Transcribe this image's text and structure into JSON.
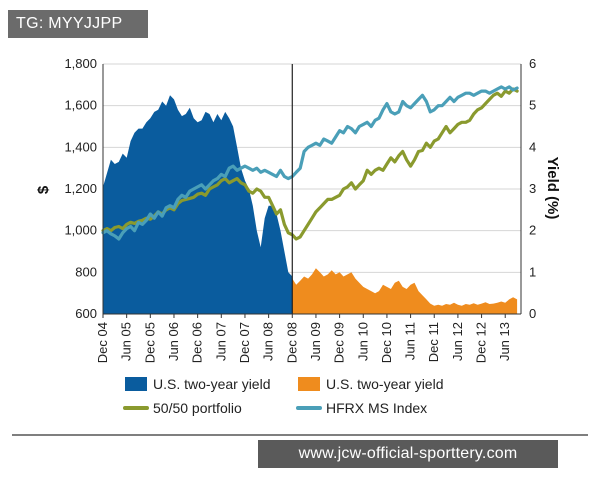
{
  "header": {
    "tag": "TG: MYYJJPP"
  },
  "watermark": {
    "text": "www.jcw-official-sporttery.com"
  },
  "chart_data": {
    "type": "area+line",
    "title": "",
    "left_axis": {
      "label": "$",
      "range": [
        600,
        1800
      ],
      "ticks": [
        "600",
        "800",
        "1,000",
        "1,200",
        "1,400",
        "1,600",
        "1,800"
      ],
      "tick_values": [
        600,
        800,
        1000,
        1200,
        1400,
        1600,
        1800
      ]
    },
    "right_axis": {
      "label": "Yield (%)",
      "range": [
        0,
        6
      ],
      "ticks": [
        "0",
        "1",
        "2",
        "3",
        "4",
        "5",
        "6"
      ],
      "tick_values": [
        0,
        1,
        2,
        3,
        4,
        5,
        6
      ]
    },
    "x_axis": {
      "label": "",
      "range": [
        0,
        106
      ],
      "tick_labels": [
        "Dec 04",
        "Jun 05",
        "Dec 05",
        "Jun 06",
        "Dec 06",
        "Jun 07",
        "Dec 07",
        "Jun 08",
        "Dec 08",
        "Jun 09",
        "Dec 09",
        "Jun 10",
        "Dec 10",
        "Jun 11",
        "Dec 11",
        "Jun 12",
        "Dec 12",
        "Jun 13"
      ],
      "tick_positions": [
        0,
        6,
        12,
        18,
        24,
        30,
        36,
        42,
        48,
        54,
        60,
        66,
        72,
        78,
        84,
        90,
        96,
        102
      ]
    },
    "divider_month": 48,
    "x_unit": "months since Dec 2004",
    "series": [
      {
        "name": "U.S. two-year yield",
        "axis": "right",
        "style": "area",
        "color": "#0a5c9e",
        "x": [
          0,
          2,
          3,
          4,
          5,
          6,
          7,
          8,
          9,
          10,
          11,
          12,
          13,
          14,
          15,
          16,
          17,
          18,
          19,
          20,
          21,
          22,
          23,
          24,
          25,
          26,
          27,
          28,
          29,
          30,
          31,
          32,
          33,
          34,
          35,
          36,
          37,
          38,
          39,
          40,
          41,
          42,
          43,
          44,
          45,
          46,
          47,
          48
        ],
        "values": [
          3.05,
          3.7,
          3.6,
          3.65,
          3.85,
          3.75,
          4.15,
          4.35,
          4.45,
          4.45,
          4.6,
          4.7,
          4.85,
          4.9,
          5.1,
          5.0,
          5.25,
          5.15,
          4.9,
          4.75,
          4.8,
          4.95,
          4.7,
          4.6,
          4.65,
          4.85,
          4.8,
          4.6,
          4.8,
          4.65,
          4.85,
          4.7,
          4.5,
          4.0,
          3.5,
          3.2,
          3.0,
          2.6,
          2.0,
          1.6,
          2.3,
          2.6,
          2.6,
          2.4,
          2.0,
          1.5,
          1.0,
          0.9
        ]
      },
      {
        "name": "U.S. two-year yield",
        "axis": "right",
        "style": "area",
        "color": "#ef8c1e",
        "x": [
          48,
          49,
          50,
          51,
          52,
          53,
          54,
          55,
          56,
          57,
          58,
          59,
          60,
          61,
          62,
          63,
          64,
          65,
          66,
          67,
          68,
          69,
          70,
          71,
          72,
          73,
          74,
          75,
          76,
          77,
          78,
          79,
          80,
          81,
          82,
          83,
          84,
          85,
          86,
          87,
          88,
          89,
          90,
          91,
          92,
          93,
          94,
          95,
          96,
          97,
          98,
          99,
          100,
          101,
          102,
          103,
          104,
          105
        ],
        "values": [
          0.85,
          0.7,
          0.8,
          0.9,
          0.85,
          0.95,
          1.1,
          1.0,
          0.9,
          0.95,
          1.05,
          0.95,
          1.0,
          0.9,
          0.95,
          1.0,
          0.85,
          0.75,
          0.65,
          0.6,
          0.55,
          0.5,
          0.55,
          0.7,
          0.65,
          0.6,
          0.75,
          0.8,
          0.65,
          0.6,
          0.7,
          0.75,
          0.55,
          0.45,
          0.35,
          0.25,
          0.2,
          0.22,
          0.2,
          0.24,
          0.22,
          0.27,
          0.22,
          0.2,
          0.24,
          0.22,
          0.26,
          0.22,
          0.25,
          0.28,
          0.24,
          0.25,
          0.27,
          0.3,
          0.27,
          0.35,
          0.4,
          0.35
        ]
      },
      {
        "name": "50/50 portfolio",
        "axis": "left",
        "style": "line",
        "color": "#8a9a2e",
        "x": [
          0,
          1,
          2,
          3,
          4,
          5,
          6,
          7,
          8,
          9,
          10,
          11,
          12,
          13,
          14,
          15,
          16,
          17,
          18,
          19,
          20,
          21,
          22,
          23,
          24,
          25,
          26,
          27,
          28,
          29,
          30,
          31,
          32,
          33,
          34,
          35,
          36,
          37,
          38,
          39,
          40,
          41,
          42,
          43,
          44,
          45,
          46,
          47,
          48,
          49,
          50,
          51,
          52,
          53,
          54,
          55,
          56,
          57,
          58,
          59,
          60,
          61,
          62,
          63,
          64,
          65,
          66,
          67,
          68,
          69,
          70,
          71,
          72,
          73,
          74,
          75,
          76,
          77,
          78,
          79,
          80,
          81,
          82,
          83,
          84,
          85,
          86,
          87,
          88,
          89,
          90,
          91,
          92,
          93,
          94,
          95,
          96,
          97,
          98,
          99,
          100,
          101,
          102,
          103,
          104,
          105
        ],
        "values": [
          1000,
          1010,
          1000,
          1015,
          1020,
          1010,
          1030,
          1040,
          1035,
          1045,
          1050,
          1060,
          1055,
          1070,
          1090,
          1080,
          1100,
          1110,
          1100,
          1130,
          1145,
          1150,
          1155,
          1160,
          1175,
          1180,
          1170,
          1200,
          1210,
          1220,
          1240,
          1250,
          1230,
          1240,
          1250,
          1230,
          1220,
          1190,
          1180,
          1200,
          1190,
          1160,
          1160,
          1120,
          1080,
          1100,
          1030,
          990,
          980,
          960,
          970,
          1000,
          1030,
          1060,
          1090,
          1110,
          1130,
          1150,
          1150,
          1160,
          1170,
          1200,
          1210,
          1230,
          1200,
          1220,
          1240,
          1290,
          1270,
          1290,
          1300,
          1290,
          1320,
          1350,
          1330,
          1360,
          1380,
          1340,
          1310,
          1340,
          1380,
          1385,
          1420,
          1400,
          1430,
          1440,
          1470,
          1500,
          1470,
          1490,
          1510,
          1520,
          1520,
          1530,
          1560,
          1580,
          1590,
          1610,
          1630,
          1650,
          1660,
          1645,
          1670,
          1660,
          1680,
          1670
        ]
      },
      {
        "name": "HFRX MS Index",
        "axis": "left",
        "style": "line",
        "color": "#4a9fb8",
        "x": [
          0,
          1,
          2,
          3,
          4,
          5,
          6,
          7,
          8,
          9,
          10,
          11,
          12,
          13,
          14,
          15,
          16,
          17,
          18,
          19,
          20,
          21,
          22,
          23,
          24,
          25,
          26,
          27,
          28,
          29,
          30,
          31,
          32,
          33,
          34,
          35,
          36,
          37,
          38,
          39,
          40,
          41,
          42,
          43,
          44,
          45,
          46,
          47,
          48,
          49,
          50,
          51,
          52,
          53,
          54,
          55,
          56,
          57,
          58,
          59,
          60,
          61,
          62,
          63,
          64,
          65,
          66,
          67,
          68,
          69,
          70,
          71,
          72,
          73,
          74,
          75,
          76,
          77,
          78,
          79,
          80,
          81,
          82,
          83,
          84,
          85,
          86,
          87,
          88,
          89,
          90,
          91,
          92,
          93,
          94,
          95,
          96,
          97,
          98,
          99,
          100,
          101,
          102,
          103,
          104,
          105
        ],
        "values": [
          990,
          1000,
          985,
          975,
          960,
          990,
          1010,
          1020,
          1000,
          1040,
          1030,
          1050,
          1080,
          1060,
          1090,
          1070,
          1110,
          1120,
          1110,
          1150,
          1170,
          1160,
          1190,
          1200,
          1210,
          1220,
          1200,
          1220,
          1240,
          1250,
          1270,
          1260,
          1300,
          1310,
          1290,
          1300,
          1310,
          1300,
          1290,
          1300,
          1280,
          1290,
          1280,
          1270,
          1260,
          1290,
          1260,
          1250,
          1260,
          1280,
          1300,
          1380,
          1400,
          1410,
          1420,
          1410,
          1440,
          1430,
          1420,
          1450,
          1480,
          1470,
          1500,
          1490,
          1470,
          1500,
          1510,
          1520,
          1500,
          1530,
          1540,
          1580,
          1610,
          1570,
          1560,
          1570,
          1620,
          1600,
          1590,
          1610,
          1630,
          1650,
          1620,
          1570,
          1580,
          1600,
          1600,
          1620,
          1640,
          1620,
          1640,
          1650,
          1660,
          1660,
          1650,
          1660,
          1670,
          1670,
          1660,
          1670,
          1680,
          1690,
          1680,
          1690,
          1675,
          1685
        ]
      }
    ],
    "legend": [
      {
        "label": "U.S. two-year yield",
        "color": "#0a5c9e",
        "kind": "swatch"
      },
      {
        "label": "U.S. two-year yield",
        "color": "#ef8c1e",
        "kind": "swatch"
      },
      {
        "label": "50/50 portfolio",
        "color": "#8a9a2e",
        "kind": "line"
      },
      {
        "label": "HFRX MS Index",
        "color": "#4a9fb8",
        "kind": "line"
      }
    ]
  }
}
